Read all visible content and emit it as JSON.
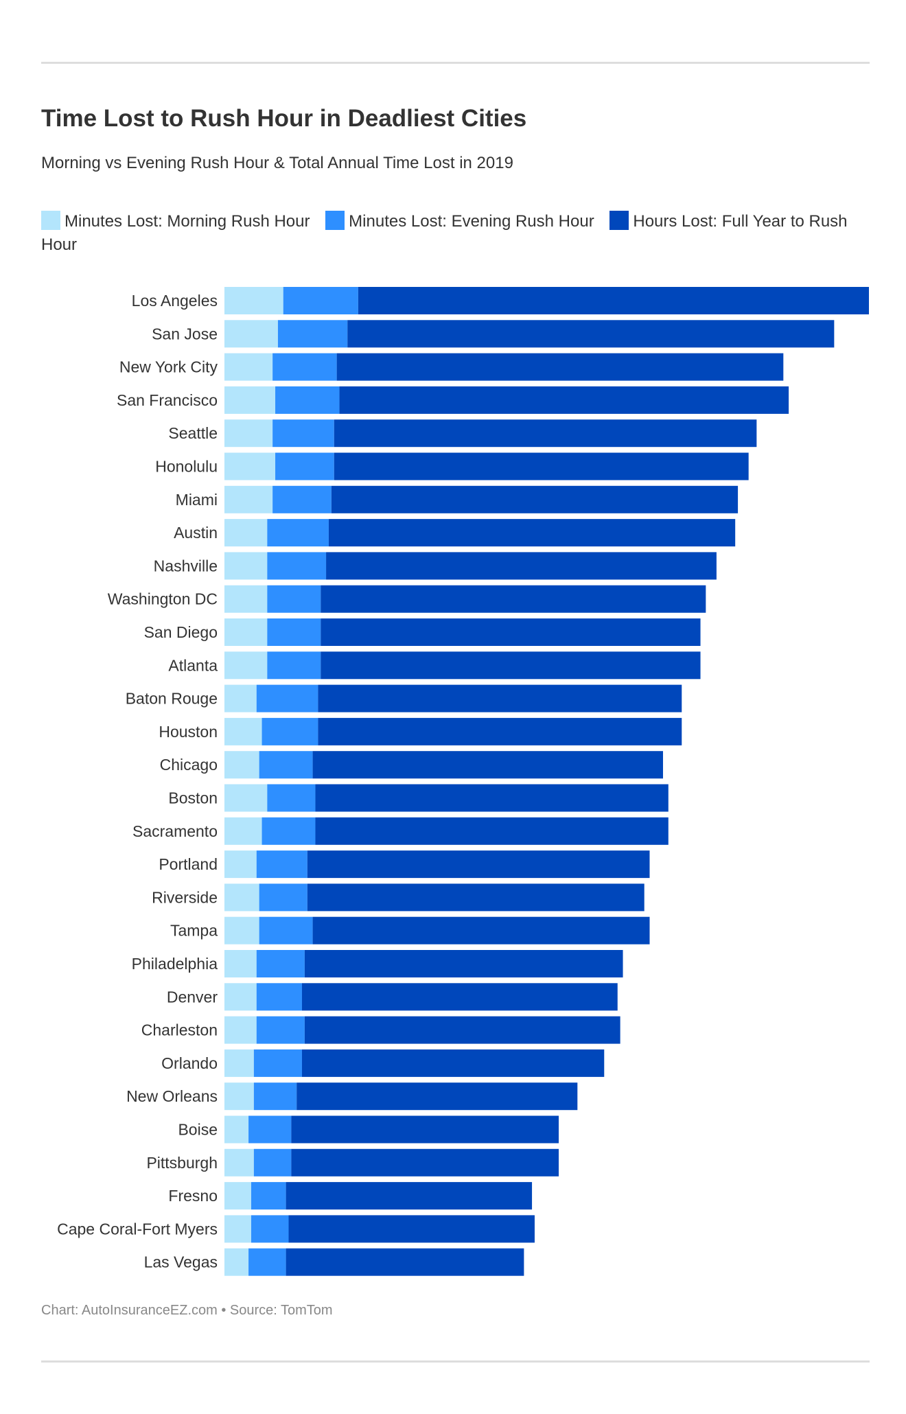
{
  "header": {
    "title": "Time Lost to Rush Hour in Deadliest Cities",
    "subtitle": "Morning vs Evening Rush Hour & Total Annual Time Lost in 2019"
  },
  "legend": [
    {
      "label": "Minutes Lost: Morning Rush Hour",
      "color": "#b3e5fc"
    },
    {
      "label": "Minutes Lost: Evening Rush Hour",
      "color": "#2e8fff"
    },
    {
      "label": "Hours Lost: Full Year to Rush Hour",
      "color": "#0047bb"
    }
  ],
  "footer": {
    "source": "Chart: AutoInsuranceEZ.com • Source: TomTom"
  },
  "chart_data": {
    "type": "bar",
    "orientation": "horizontal",
    "stacked": true,
    "grid": false,
    "legend_position": "top-left",
    "categories": [
      "Los Angeles",
      "San Jose",
      "New York City",
      "San Francisco",
      "Seattle",
      "Honolulu",
      "Miami",
      "Austin",
      "Nashville",
      "Washington DC",
      "San Diego",
      "Atlanta",
      "Baton Rouge",
      "Houston",
      "Chicago",
      "Boston",
      "Sacramento",
      "Portland",
      "Riverside",
      "Tampa",
      "Philadelphia",
      "Denver",
      "Charleston",
      "Orlando",
      "New Orleans",
      "Boise",
      "Pittsburgh",
      "Fresno",
      "Cape Coral-Fort Myers",
      "Las Vegas"
    ],
    "series": [
      {
        "name": "Minutes Lost: Morning Rush Hour",
        "color": "#b3e5fc",
        "values": [
          22,
          20,
          18,
          19,
          18,
          19,
          18,
          16,
          16,
          16,
          16,
          16,
          12,
          14,
          13,
          16,
          14,
          12,
          13,
          13,
          12,
          12,
          12,
          11,
          11,
          9,
          11,
          10,
          10,
          9
        ]
      },
      {
        "name": "Minutes Lost: Evening Rush Hour",
        "color": "#2e8fff",
        "values": [
          28,
          26,
          24,
          24,
          23,
          22,
          22,
          23,
          22,
          20,
          20,
          20,
          23,
          21,
          20,
          18,
          20,
          19,
          18,
          20,
          18,
          17,
          18,
          18,
          16,
          16,
          14,
          13,
          14,
          14
        ]
      },
      {
        "name": "Hours Lost: Full Year to Rush Hour",
        "color": "#0047bb",
        "values": [
          191,
          182,
          167,
          168,
          158,
          155,
          152,
          152,
          146,
          144,
          142,
          142,
          136,
          136,
          131,
          132,
          132,
          128,
          126,
          126,
          119,
          118,
          118,
          113,
          105,
          100,
          100,
          92,
          92,
          89
        ]
      }
    ]
  }
}
